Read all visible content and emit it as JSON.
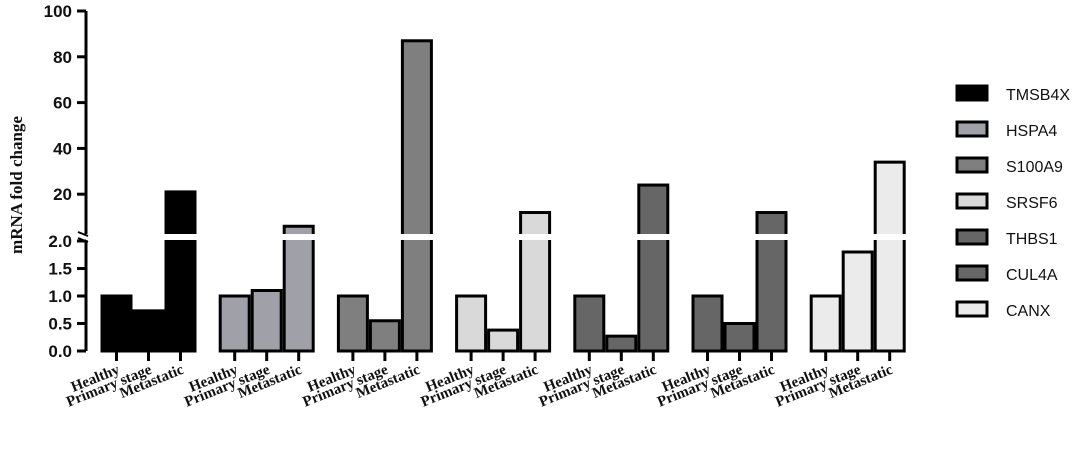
{
  "chart_data": {
    "type": "bar",
    "ylabel": "mRNA fold change",
    "y_axis": {
      "broken": true,
      "lower_segment": {
        "range": [
          0,
          2.0
        ],
        "ticks": [
          "0.0",
          "0.5",
          "1.0",
          "1.5",
          "2.0"
        ]
      },
      "upper_segment": {
        "range": [
          0,
          100
        ],
        "ticks": [
          "20",
          "40",
          "60",
          "80",
          "100"
        ]
      }
    },
    "categories": [
      "Healthy",
      "Primary stage",
      "Metastatic"
    ],
    "series": [
      {
        "name": "TMSB4X",
        "color": "#000000",
        "values": [
          1.0,
          0.73,
          21
        ]
      },
      {
        "name": "HSPA4",
        "color": "#a0a0a8",
        "values": [
          1.0,
          1.1,
          6
        ]
      },
      {
        "name": "S100A9",
        "color": "#7f7f7f",
        "values": [
          1.0,
          0.55,
          87
        ]
      },
      {
        "name": "SRSF6",
        "color": "#d9d9d9",
        "values": [
          1.0,
          0.38,
          12
        ]
      },
      {
        "name": "THBS1",
        "color": "#666666",
        "values": [
          1.0,
          0.27,
          24
        ]
      },
      {
        "name": "CUL4A",
        "color": "#666666",
        "values": [
          1.0,
          0.5,
          12
        ]
      },
      {
        "name": "CANX",
        "color": "#ebebeb",
        "values": [
          1.0,
          1.8,
          34
        ]
      }
    ],
    "grid": false,
    "legend_position": "right"
  }
}
